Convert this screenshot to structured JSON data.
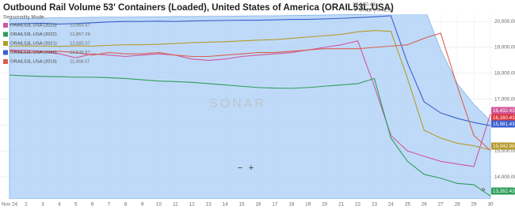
{
  "chart_data": {
    "type": "line",
    "title": "Outbound Rail Volume 53' Containers (Loaded), United States of America (ORAIL53L.USA)",
    "last_value": "16,160.43",
    "change": "▼ 87.28 (-0.42%)",
    "mode_label": "Seasonality Mode",
    "watermark": "SONAR",
    "categories": [
      "Nov 24",
      "2",
      "3",
      "4",
      "5",
      "6",
      "7",
      "8",
      "9",
      "10",
      "11",
      "12",
      "13",
      "14",
      "15",
      "16",
      "17",
      "18",
      "19",
      "20",
      "21",
      "22",
      "23",
      "24",
      "25",
      "26",
      "27",
      "28",
      "29",
      "30"
    ],
    "area": {
      "color": "#a9cdf5",
      "values": [
        20100,
        20120,
        20130,
        20150,
        20150,
        20160,
        20170,
        20170,
        20180,
        20180,
        20190,
        20190,
        20200,
        20200,
        20210,
        20220,
        20220,
        20230,
        20240,
        20250,
        20260,
        20270,
        20290,
        20300,
        20400,
        20550,
        18900,
        17600,
        16800,
        16160
      ]
    },
    "series": [
      {
        "name": "ORAIL53L.USA (2023)",
        "legend_value": "12,064.57",
        "color": "#d0579b",
        "values": [
          18900,
          18880,
          18850,
          18750,
          18600,
          18750,
          18700,
          18650,
          18700,
          18750,
          18700,
          18550,
          18500,
          18550,
          18650,
          18700,
          18750,
          18800,
          18900,
          19000,
          19100,
          19250,
          17500,
          15600,
          15000,
          14800,
          14600,
          14500,
          14400,
          16432
        ]
      },
      {
        "name": "ORAIL53L.USA (2022)",
        "legend_value": "12,857.29",
        "color": "#2e9e5a",
        "values": [
          17930,
          17900,
          17880,
          17870,
          17850,
          17850,
          17830,
          17800,
          17750,
          17700,
          17680,
          17650,
          17600,
          17550,
          17500,
          17450,
          17430,
          17420,
          17450,
          17500,
          17550,
          17600,
          17800,
          15500,
          14600,
          14100,
          13950,
          13750,
          13700,
          13262
        ]
      },
      {
        "name": "ORAIL53L.USA (2021)",
        "legend_value": "12,582.57",
        "color": "#b59a2a",
        "values": [
          19050,
          19060,
          19050,
          19040,
          19060,
          19050,
          19080,
          19100,
          19100,
          19120,
          19150,
          19180,
          19200,
          19220,
          19250,
          19280,
          19300,
          19350,
          19400,
          19450,
          19500,
          19600,
          19650,
          19620,
          17800,
          15800,
          15500,
          15300,
          15200,
          15043
        ]
      },
      {
        "name": "ORAIL53L.USA (2020)",
        "legend_value": "12,536.57",
        "color": "#3a5fd0",
        "values": [
          19900,
          19920,
          19930,
          19900,
          19920,
          19950,
          19980,
          20000,
          20000,
          20010,
          20000,
          20020,
          20030,
          20040,
          20050,
          20050,
          20060,
          20080,
          20080,
          20100,
          20120,
          20150,
          20180,
          20220,
          18400,
          16900,
          16470,
          16260,
          16100,
          15981
        ]
      },
      {
        "name": "ORAIL53L.USA (2019)",
        "legend_value": "11,458.57",
        "color": "#d9604f",
        "values": [
          18850,
          18800,
          18820,
          18850,
          18800,
          18700,
          18800,
          18750,
          18750,
          18800,
          18700,
          18650,
          18650,
          18700,
          18750,
          18800,
          18800,
          18850,
          18900,
          18950,
          18950,
          18950,
          19000,
          19050,
          19100,
          19350,
          19550,
          17500,
          15600,
          15021
        ]
      }
    ],
    "value_tags": [
      {
        "label": "16,432.43",
        "color": "#d0579b"
      },
      {
        "label": "16,160.43",
        "color": "#d9363e"
      },
      {
        "label": "15,981.43",
        "color": "#3a5fd0"
      },
      {
        "label": "15,042.98",
        "color": "#b59a2a"
      },
      {
        "label": "13,262.43",
        "color": "#2e9e5a"
      }
    ],
    "ylim": [
      13150,
      20280
    ],
    "yticks": [
      {
        "value": 14000,
        "label": "14,000.00"
      },
      {
        "value": 15000,
        "label": "15,000.00"
      },
      {
        "value": 16000,
        "label": "16,000.00"
      },
      {
        "value": 17000,
        "label": "17,000.00"
      },
      {
        "value": 18000,
        "label": "18,000.00"
      },
      {
        "value": 19000,
        "label": "19,000.00"
      },
      {
        "value": 20000,
        "label": "20,000.00"
      }
    ],
    "grid": true
  }
}
